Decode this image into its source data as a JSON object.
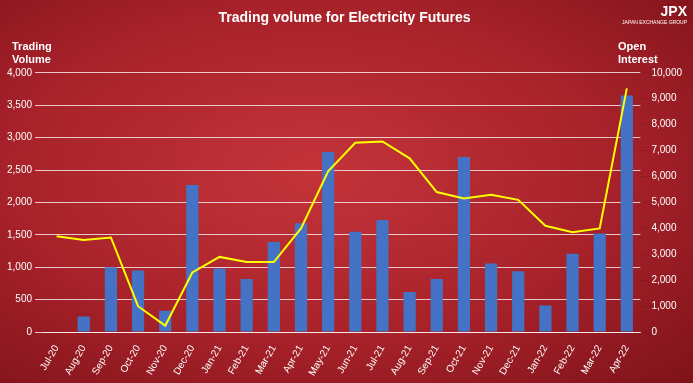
{
  "chart_data": {
    "type": "bar",
    "title": "Trading volume for Electricity Futures",
    "y_label": "Trading Volume",
    "y2_label": "Open Interest",
    "annotations": [
      "JPX",
      "JAPAN EXCHANGE GROUP"
    ],
    "categories": [
      "Jul-20",
      "Aug-20",
      "Sep-20",
      "Oct-20",
      "Nov-20",
      "Dec-20",
      "Jan-21",
      "Feb-21",
      "Mar-21",
      "Apr-21",
      "May-21",
      "Jun-21",
      "Jul-21",
      "Aug-21",
      "Sep-21",
      "Oct-21",
      "Nov-21",
      "Dec-21",
      "Jan-22",
      "Feb-22",
      "Mar-22",
      "Apr-22"
    ],
    "series": [
      {
        "name": "Trading Volume",
        "type": "bar",
        "color": "#4472c4",
        "values": [
          0,
          240,
          1000,
          950,
          330,
          2270,
          980,
          820,
          1390,
          1680,
          2780,
          1550,
          1730,
          620,
          820,
          2700,
          1060,
          940,
          410,
          1210,
          1520,
          3650
        ]
      },
      {
        "name": "Open Interest",
        "type": "line",
        "color": "#ffff00",
        "axis": "y2",
        "marker": "none",
        "line_style": "solid",
        "values": [
          3700,
          3550,
          3650,
          1000,
          250,
          2300,
          2900,
          2700,
          2700,
          4000,
          6200,
          7300,
          7350,
          6700,
          5400,
          5150,
          5300,
          5100,
          4100,
          3850,
          4000,
          9400
        ]
      }
    ],
    "ylim": [
      0,
      4000
    ],
    "yticks": [
      0,
      500,
      {
        "value": 1000,
        "label": "1,000"
      },
      {
        "value": 1500,
        "label": "1,500"
      },
      {
        "value": 2000,
        "label": "2,000"
      },
      {
        "value": 2500,
        "label": "2,500"
      },
      {
        "value": 3000,
        "label": "3,000"
      },
      {
        "value": 3500,
        "label": "3,500"
      },
      {
        "value": 4000,
        "label": "4,000"
      }
    ],
    "y2lim": [
      0,
      10000
    ],
    "y2ticks": [
      0,
      {
        "value": 1000,
        "label": "1,000"
      },
      {
        "value": 2000,
        "label": "2,000"
      },
      {
        "value": 3000,
        "label": "3,000"
      },
      {
        "value": 4000,
        "label": "4,000"
      },
      {
        "value": 5000,
        "label": "5,000"
      },
      {
        "value": 6000,
        "label": "6,000"
      },
      {
        "value": 7000,
        "label": "7,000"
      },
      {
        "value": 8000,
        "label": "8,000"
      },
      {
        "value": 9000,
        "label": "9,000"
      },
      {
        "value": 10000,
        "label": "10,000"
      }
    ],
    "grid": true
  }
}
